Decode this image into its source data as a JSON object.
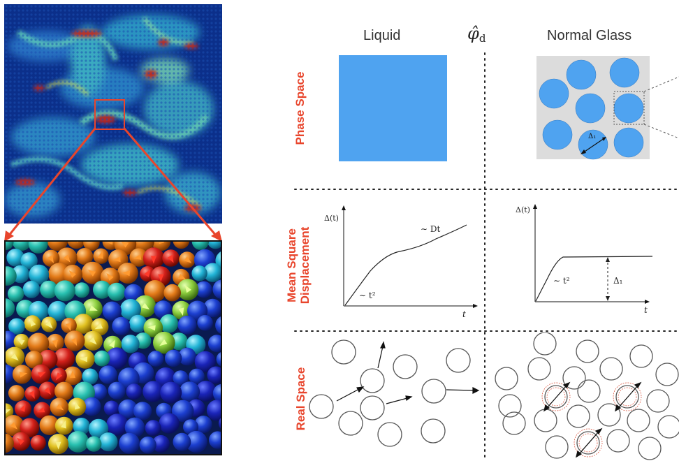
{
  "columns": {
    "liquid": "Liquid",
    "normal_glass": "Normal Glass",
    "center_symbol": "φ̂",
    "center_subscript": "d"
  },
  "rows": {
    "phase_space": "Phase Space",
    "msd_line1": "Mean Square",
    "msd_line2": "Displacement",
    "real_space": "Real Space"
  },
  "plots": {
    "liquid_msd": {
      "ylabel": "Δ(t)",
      "xlabel": "t",
      "early": "∼ t²",
      "late": "∼ Dt"
    },
    "glass_msd": {
      "ylabel": "Δ(t)",
      "xlabel": "t",
      "early": "∼ t²",
      "plateau": "Δ₁"
    }
  },
  "glass_cell_label": "Δ₁",
  "colors": {
    "accent_red": "#e8452c",
    "phase_blue": "#4fa3f0",
    "glass_bg": "#dcdcdc",
    "sim_dark": "#0b2f8a",
    "sim_cyan": "#3fb8c8",
    "sim_red": "#c0281e"
  }
}
